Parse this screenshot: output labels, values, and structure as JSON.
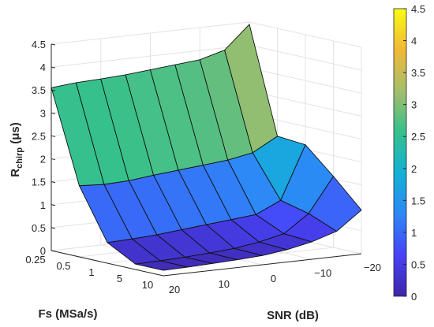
{
  "chart_data": {
    "type": "surface",
    "title": "",
    "xlabel": "SNR (dB)",
    "ylabel": "Fs (MSa/s)",
    "zlabel_main": "R",
    "zlabel_sub": "chirp",
    "zlabel_unit": " (μs)",
    "snr_ticks": [
      "20",
      "10",
      "0",
      "−10",
      "−20"
    ],
    "fs_ticks": [
      "0.25",
      "0.5",
      "1",
      "5",
      "10"
    ],
    "z_ticks": [
      "0",
      "0.5",
      "1",
      "1.5",
      "2",
      "2.5",
      "3",
      "3.5",
      "4",
      "4.5"
    ],
    "zlim": [
      0,
      4.5
    ],
    "colorbar_ticks": [
      "0",
      "0.5",
      "1",
      "1.5",
      "2",
      "2.5",
      "3",
      "3.5",
      "4",
      "4.5"
    ],
    "colormap": [
      "#3e26a8",
      "#4743f8",
      "#2e87f7",
      "#13b1d6",
      "#36c08c",
      "#a5be6b",
      "#f1b936",
      "#f9fb15"
    ],
    "snr_values_db": [
      20,
      15,
      10,
      5,
      0,
      -5,
      -10,
      -15,
      -20
    ],
    "fs_values_msas": [
      0.25,
      0.5,
      1,
      5,
      10
    ],
    "values_us": [
      [
        3.55,
        3.6,
        3.62,
        3.65,
        3.7,
        3.75,
        3.8,
        3.95,
        4.45
      ],
      [
        1.55,
        1.52,
        1.54,
        1.6,
        1.65,
        1.7,
        1.75,
        1.85,
        2.15
      ],
      [
        0.45,
        0.47,
        0.5,
        0.55,
        0.6,
        0.65,
        0.7,
        0.95,
        2.1
      ],
      [
        0.12,
        0.13,
        0.15,
        0.18,
        0.22,
        0.3,
        0.42,
        0.8,
        1.55
      ],
      [
        0.12,
        0.13,
        0.15,
        0.17,
        0.2,
        0.27,
        0.38,
        0.55,
        0.95
      ]
    ],
    "grid": true,
    "colorbar": "right"
  }
}
